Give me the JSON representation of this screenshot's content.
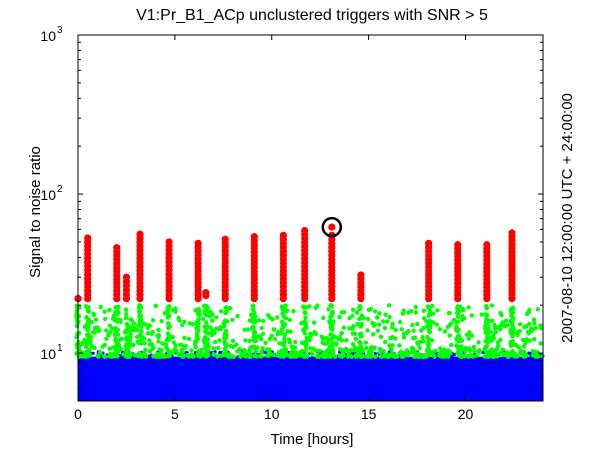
{
  "chart_data": {
    "type": "scatter",
    "title": "V1:Pr_B1_ACp unclustered triggers with SNR > 5",
    "xlabel": "Time [hours]",
    "ylabel": "Signal to noise ratio",
    "right_label": "2007-08-10 12:00:00 UTC + 24:00:00",
    "xlim": [
      0,
      24
    ],
    "ylim": [
      5,
      1000
    ],
    "y_scale": "log",
    "x_ticks": [
      0,
      5,
      10,
      15,
      20
    ],
    "y_ticks": [
      {
        "value": 10,
        "base": "10",
        "exp": "1"
      },
      {
        "value": 100,
        "base": "10",
        "exp": "2"
      },
      {
        "value": 1000,
        "base": "10",
        "exp": "3"
      }
    ],
    "grid": false,
    "legend": "none",
    "series": [
      {
        "color": "#0000ff",
        "snr_range": [
          5,
          9.5
        ],
        "description_key": "low"
      },
      {
        "color": "#00ff00",
        "snr_range": [
          9.5,
          20
        ],
        "description_key": "mid"
      },
      {
        "color": "#ff0000",
        "snr_range": [
          20,
          60
        ],
        "description_key": "high"
      }
    ],
    "red_columns": [
      {
        "x": 0.0,
        "ymin": 22,
        "ymax": 22
      },
      {
        "x": 0.5,
        "ymin": 22,
        "ymax": 53
      },
      {
        "x": 2.0,
        "ymin": 22,
        "ymax": 46
      },
      {
        "x": 2.5,
        "ymin": 22,
        "ymax": 30
      },
      {
        "x": 3.2,
        "ymin": 22,
        "ymax": 56
      },
      {
        "x": 4.7,
        "ymin": 22,
        "ymax": 50
      },
      {
        "x": 6.2,
        "ymin": 22,
        "ymax": 49
      },
      {
        "x": 6.6,
        "ymin": 23,
        "ymax": 24
      },
      {
        "x": 7.6,
        "ymin": 22,
        "ymax": 52
      },
      {
        "x": 9.1,
        "ymin": 22,
        "ymax": 54
      },
      {
        "x": 10.6,
        "ymin": 22,
        "ymax": 55
      },
      {
        "x": 11.7,
        "ymin": 22,
        "ymax": 59
      },
      {
        "x": 13.1,
        "ymin": 22,
        "ymax": 55
      },
      {
        "x": 14.6,
        "ymin": 22,
        "ymax": 31
      },
      {
        "x": 18.1,
        "ymin": 22,
        "ymax": 49
      },
      {
        "x": 19.6,
        "ymin": 22,
        "ymax": 48
      },
      {
        "x": 21.1,
        "ymin": 22,
        "ymax": 48
      },
      {
        "x": 22.4,
        "ymin": 22,
        "ymax": 57
      }
    ],
    "loudest": {
      "x": 13.1,
      "y": 62
    }
  }
}
